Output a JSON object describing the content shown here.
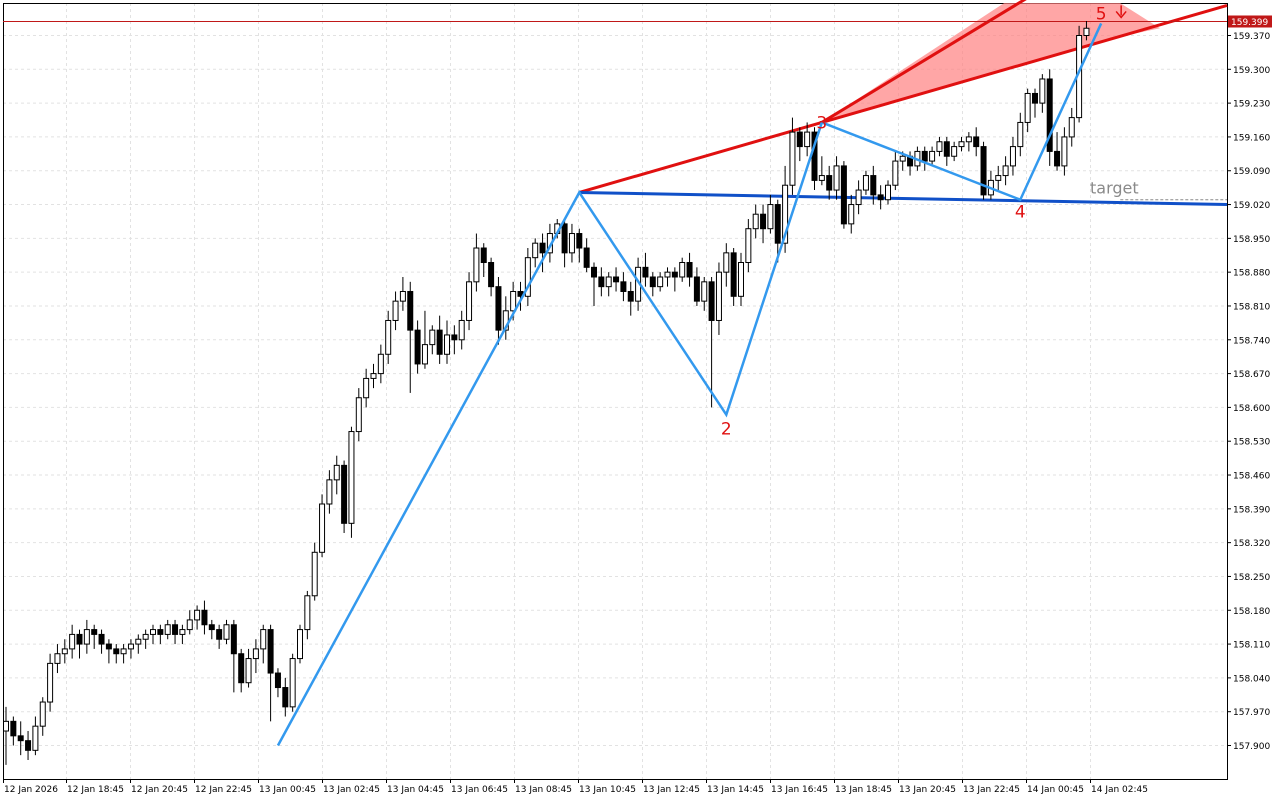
{
  "chart_data": {
    "type": "candlestick",
    "title": "",
    "grid": true,
    "colors": {
      "bull_fill": "#ffffff",
      "bear_fill": "#000000",
      "wave": "#3399ee",
      "upper_trend": "#e01010",
      "lower_trend": "#1050c8",
      "fan_fill": "#ff8080",
      "label": "#e01010",
      "target": "#8a8a8a",
      "price_badge": "#c01818",
      "grid": "#e2e2e2"
    },
    "y_axis": {
      "min": 157.865,
      "max": 159.418,
      "ticks": [
        "159.370",
        "159.300",
        "159.230",
        "159.160",
        "159.090",
        "159.020",
        "158.950",
        "158.880",
        "158.810",
        "158.740",
        "158.670",
        "158.600",
        "158.530",
        "158.460",
        "158.390",
        "158.320",
        "158.250",
        "158.180",
        "158.110",
        "158.040",
        "157.970",
        "157.900"
      ]
    },
    "x_axis": {
      "ticks": [
        "12 Jan 2026",
        "12 Jan 18:45",
        "12 Jan 20:45",
        "12 Jan 22:45",
        "13 Jan 00:45",
        "13 Jan 02:45",
        "13 Jan 04:45",
        "13 Jan 06:45",
        "13 Jan 08:45",
        "13 Jan 10:45",
        "13 Jan 12:45",
        "13 Jan 14:45",
        "13 Jan 16:45",
        "13 Jan 18:45",
        "13 Jan 20:45",
        "13 Jan 22:45",
        "14 Jan 00:45",
        "14 Jan 02:45"
      ]
    },
    "last_price": "159.399",
    "candles": [
      [
        157.93,
        157.95,
        157.86,
        157.98
      ],
      [
        157.95,
        157.92,
        157.9,
        157.96
      ],
      [
        157.92,
        157.91,
        157.88,
        157.95
      ],
      [
        157.91,
        157.89,
        157.87,
        157.93
      ],
      [
        157.89,
        157.94,
        157.88,
        157.96
      ],
      [
        157.94,
        157.99,
        157.92,
        158.0
      ],
      [
        157.99,
        158.07,
        157.97,
        158.09
      ],
      [
        158.07,
        158.09,
        158.05,
        158.11
      ],
      [
        158.09,
        158.1,
        158.07,
        158.12
      ],
      [
        158.1,
        158.13,
        158.08,
        158.15
      ],
      [
        158.13,
        158.11,
        158.08,
        158.14
      ],
      [
        158.11,
        158.14,
        158.09,
        158.16
      ],
      [
        158.14,
        158.13,
        158.1,
        158.15
      ],
      [
        158.13,
        158.11,
        158.09,
        158.14
      ],
      [
        158.11,
        158.1,
        158.07,
        158.12
      ],
      [
        158.1,
        158.09,
        158.07,
        158.11
      ],
      [
        158.09,
        158.1,
        158.07,
        158.11
      ],
      [
        158.1,
        158.11,
        158.08,
        158.12
      ],
      [
        158.11,
        158.12,
        158.09,
        158.13
      ],
      [
        158.12,
        158.13,
        158.1,
        158.14
      ],
      [
        158.13,
        158.14,
        158.11,
        158.15
      ],
      [
        158.14,
        158.13,
        158.11,
        158.15
      ],
      [
        158.13,
        158.15,
        158.12,
        158.16
      ],
      [
        158.15,
        158.13,
        158.11,
        158.16
      ],
      [
        158.13,
        158.14,
        158.11,
        158.15
      ],
      [
        158.14,
        158.16,
        158.13,
        158.18
      ],
      [
        158.16,
        158.18,
        158.14,
        158.19
      ],
      [
        158.18,
        158.15,
        158.13,
        158.2
      ],
      [
        158.15,
        158.14,
        158.12,
        158.16
      ],
      [
        158.14,
        158.12,
        158.1,
        158.15
      ],
      [
        158.12,
        158.15,
        158.11,
        158.16
      ],
      [
        158.15,
        158.09,
        158.01,
        158.16
      ],
      [
        158.09,
        158.03,
        158.01,
        158.1
      ],
      [
        158.03,
        158.08,
        158.02,
        158.1
      ],
      [
        158.08,
        158.1,
        158.05,
        158.12
      ],
      [
        158.1,
        158.14,
        158.07,
        158.15
      ],
      [
        158.14,
        158.05,
        157.95,
        158.15
      ],
      [
        158.05,
        158.02,
        158.0,
        158.06
      ],
      [
        158.02,
        157.98,
        157.96,
        158.04
      ],
      [
        157.98,
        158.08,
        157.97,
        158.09
      ],
      [
        158.08,
        158.14,
        158.07,
        158.15
      ],
      [
        158.14,
        158.21,
        158.12,
        158.22
      ],
      [
        158.21,
        158.3,
        158.2,
        158.32
      ],
      [
        158.3,
        158.4,
        158.29,
        158.42
      ],
      [
        158.4,
        158.45,
        158.38,
        158.47
      ],
      [
        158.45,
        158.48,
        158.42,
        158.5
      ],
      [
        158.48,
        158.36,
        158.34,
        158.49
      ],
      [
        158.36,
        158.55,
        158.33,
        158.56
      ],
      [
        158.55,
        158.62,
        158.53,
        158.64
      ],
      [
        158.62,
        158.66,
        158.6,
        158.68
      ],
      [
        158.66,
        158.67,
        158.64,
        158.69
      ],
      [
        158.67,
        158.71,
        158.65,
        158.73
      ],
      [
        158.71,
        158.78,
        158.69,
        158.8
      ],
      [
        158.78,
        158.82,
        158.76,
        158.84
      ],
      [
        158.82,
        158.84,
        158.8,
        158.87
      ],
      [
        158.84,
        158.76,
        158.63,
        158.86
      ],
      [
        158.76,
        158.69,
        158.67,
        158.78
      ],
      [
        158.69,
        158.73,
        158.68,
        158.8
      ],
      [
        158.73,
        158.76,
        158.71,
        158.77
      ],
      [
        158.76,
        158.71,
        158.69,
        158.79
      ],
      [
        158.71,
        158.75,
        158.69,
        158.78
      ],
      [
        158.75,
        158.74,
        158.71,
        158.77
      ],
      [
        158.74,
        158.78,
        158.72,
        158.8
      ],
      [
        158.78,
        158.86,
        158.76,
        158.88
      ],
      [
        158.86,
        158.93,
        158.84,
        158.96
      ],
      [
        158.93,
        158.9,
        158.87,
        158.94
      ],
      [
        158.9,
        158.85,
        158.83,
        158.91
      ],
      [
        158.85,
        158.76,
        158.73,
        158.87
      ],
      [
        158.76,
        158.8,
        158.74,
        158.83
      ],
      [
        158.8,
        158.84,
        158.78,
        158.86
      ],
      [
        158.84,
        158.83,
        158.8,
        158.86
      ],
      [
        158.83,
        158.91,
        158.81,
        158.93
      ],
      [
        158.91,
        158.94,
        158.89,
        158.95
      ],
      [
        158.94,
        158.92,
        158.88,
        158.96
      ],
      [
        158.92,
        158.96,
        158.9,
        158.98
      ],
      [
        158.96,
        158.98,
        158.95,
        158.99
      ],
      [
        158.98,
        158.92,
        158.89,
        158.99
      ],
      [
        158.92,
        158.96,
        158.9,
        158.98
      ],
      [
        158.96,
        158.93,
        158.9,
        158.97
      ],
      [
        158.93,
        158.89,
        158.88,
        158.95
      ],
      [
        158.89,
        158.87,
        158.81,
        158.9
      ],
      [
        158.87,
        158.85,
        158.83,
        158.89
      ],
      [
        158.85,
        158.87,
        158.83,
        158.88
      ],
      [
        158.87,
        158.86,
        158.84,
        158.89
      ],
      [
        158.86,
        158.84,
        158.82,
        158.88
      ],
      [
        158.84,
        158.82,
        158.79,
        158.86
      ],
      [
        158.82,
        158.89,
        158.8,
        158.91
      ],
      [
        158.89,
        158.87,
        158.85,
        158.92
      ],
      [
        158.87,
        158.85,
        158.83,
        158.88
      ],
      [
        158.85,
        158.87,
        158.84,
        158.88
      ],
      [
        158.87,
        158.88,
        158.85,
        158.89
      ],
      [
        158.88,
        158.87,
        158.84,
        158.89
      ],
      [
        158.87,
        158.9,
        158.86,
        158.91
      ],
      [
        158.9,
        158.87,
        158.85,
        158.92
      ],
      [
        158.87,
        158.82,
        158.81,
        158.89
      ],
      [
        158.82,
        158.86,
        158.8,
        158.87
      ],
      [
        158.86,
        158.78,
        158.6,
        158.87
      ],
      [
        158.78,
        158.88,
        158.75,
        158.9
      ],
      [
        158.88,
        158.92,
        158.85,
        158.94
      ],
      [
        158.92,
        158.83,
        158.81,
        158.93
      ],
      [
        158.83,
        158.9,
        158.81,
        158.92
      ],
      [
        158.9,
        158.97,
        158.88,
        158.99
      ],
      [
        158.97,
        159.0,
        158.95,
        159.02
      ],
      [
        159.0,
        158.97,
        158.94,
        159.02
      ],
      [
        158.97,
        159.02,
        158.96,
        159.04
      ],
      [
        159.02,
        158.94,
        158.9,
        159.03
      ],
      [
        158.94,
        159.06,
        158.92,
        159.1
      ],
      [
        159.06,
        159.17,
        159.04,
        159.2
      ],
      [
        159.17,
        159.14,
        159.11,
        159.18
      ],
      [
        159.14,
        159.17,
        159.12,
        159.19
      ],
      [
        159.17,
        159.07,
        159.05,
        159.18
      ],
      [
        159.07,
        159.08,
        159.06,
        159.12
      ],
      [
        159.08,
        159.05,
        159.03,
        159.1
      ],
      [
        159.05,
        159.1,
        159.03,
        159.12
      ],
      [
        159.1,
        158.98,
        158.97,
        159.11
      ],
      [
        158.98,
        159.02,
        158.96,
        159.04
      ],
      [
        159.02,
        159.05,
        159.0,
        159.07
      ],
      [
        159.05,
        159.08,
        159.04,
        159.09
      ],
      [
        159.08,
        159.04,
        159.02,
        159.1
      ],
      [
        159.04,
        159.03,
        159.01,
        159.06
      ],
      [
        159.03,
        159.06,
        159.02,
        159.07
      ],
      [
        159.06,
        159.11,
        159.05,
        159.13
      ],
      [
        159.11,
        159.12,
        159.09,
        159.13
      ],
      [
        159.12,
        159.1,
        159.08,
        159.13
      ],
      [
        159.1,
        159.13,
        159.09,
        159.14
      ],
      [
        159.13,
        159.11,
        159.09,
        159.14
      ],
      [
        159.11,
        159.13,
        159.1,
        159.14
      ],
      [
        159.13,
        159.15,
        159.12,
        159.16
      ],
      [
        159.15,
        159.12,
        159.1,
        159.16
      ],
      [
        159.12,
        159.14,
        159.11,
        159.15
      ],
      [
        159.14,
        159.15,
        159.13,
        159.16
      ],
      [
        159.15,
        159.16,
        159.13,
        159.17
      ],
      [
        159.16,
        159.14,
        159.12,
        159.18
      ],
      [
        159.14,
        159.04,
        159.03,
        159.15
      ],
      [
        159.04,
        159.07,
        159.03,
        159.09
      ],
      [
        159.07,
        159.08,
        159.05,
        159.1
      ],
      [
        159.08,
        159.1,
        159.06,
        159.12
      ],
      [
        159.1,
        159.14,
        159.08,
        159.16
      ],
      [
        159.14,
        159.19,
        159.12,
        159.21
      ],
      [
        159.19,
        159.25,
        159.17,
        159.26
      ],
      [
        159.25,
        159.23,
        159.2,
        159.26
      ],
      [
        159.23,
        159.28,
        159.21,
        159.29
      ],
      [
        159.28,
        159.13,
        159.1,
        159.3
      ],
      [
        159.13,
        159.1,
        159.09,
        159.17
      ],
      [
        159.1,
        159.16,
        159.08,
        159.18
      ],
      [
        159.16,
        159.2,
        159.14,
        159.22
      ],
      [
        159.2,
        159.37,
        159.19,
        159.39
      ],
      [
        159.37,
        159.385,
        159.36,
        159.4
      ]
    ],
    "wave_points": [
      {
        "price": 157.9,
        "label": ""
      },
      {
        "price": 159.045,
        "label": ""
      },
      {
        "price": 158.585,
        "label": "2"
      },
      {
        "price": 159.19,
        "label": "3"
      },
      {
        "price": 159.03,
        "label": "4"
      },
      {
        "price": 159.395,
        "label": "5"
      }
    ],
    "wave_labels": [
      "2",
      "3",
      "4",
      "5"
    ],
    "target_label": "target",
    "target_price": 159.03
  }
}
